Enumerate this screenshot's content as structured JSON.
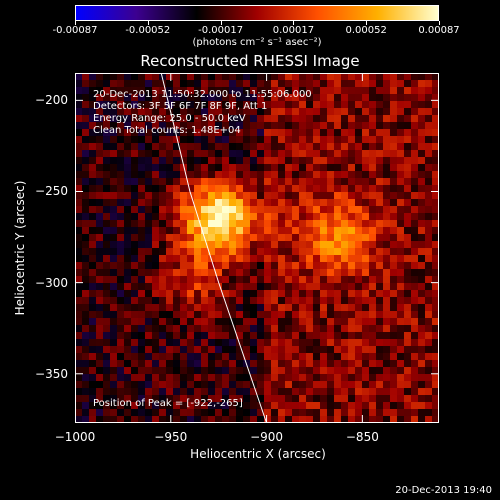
{
  "colorbar": {
    "ticks": [
      "-0.00087",
      "-0.00052",
      "-0.00017",
      "0.00017",
      "0.00052",
      "0.00087"
    ],
    "units": "(photons cm⁻² s⁻¹ asec⁻²)",
    "colormap": [
      "#0000ff",
      "#3c0090",
      "#000000",
      "#a00000",
      "#ff5000",
      "#ffb000",
      "#ffffd0"
    ]
  },
  "title": "Reconstructed RHESSI Image",
  "info": {
    "time_range": "20-Dec-2013 11:50:32.000 to 11:55:06.000",
    "detectors": "Detectors: 3F 5F 6F 7F 8F 9F, Att 1",
    "energy": "Energy Range: 25.0 - 50.0 keV",
    "method": "Clean    Total counts: 1.48E+04",
    "peak": "Position of Peak = [-922,-265]"
  },
  "axes": {
    "xlabel": "Heliocentric X (arcsec)",
    "ylabel": "Heliocentric Y (arcsec)",
    "xticks": [
      "-1000",
      "-950",
      "-900",
      "-850"
    ],
    "yticks": [
      "-200",
      "-250",
      "-300",
      "-350"
    ]
  },
  "chart_data": {
    "type": "heatmap",
    "title": "Reconstructed RHESSI Image",
    "xlabel": "Heliocentric X (arcsec)",
    "ylabel": "Heliocentric Y (arcsec)",
    "xlim": [
      -1000,
      -810
    ],
    "ylim": [
      -377,
      -185
    ],
    "peak": {
      "x": -922,
      "y": -265
    },
    "sources": [
      {
        "x": -925,
        "y": -265,
        "intensity": 1.0
      },
      {
        "x": -863,
        "y": -275,
        "intensity": 0.45
      },
      {
        "x": -938,
        "y": -300,
        "intensity": 0.3
      }
    ],
    "value_range": [
      -0.00087,
      0.00087
    ],
    "limb_curve": [
      [
        -955,
        -185
      ],
      [
        -940,
        -250
      ],
      [
        -925,
        -300
      ],
      [
        -900,
        -377
      ]
    ]
  },
  "timestamp": "20-Dec-2013 19:40"
}
